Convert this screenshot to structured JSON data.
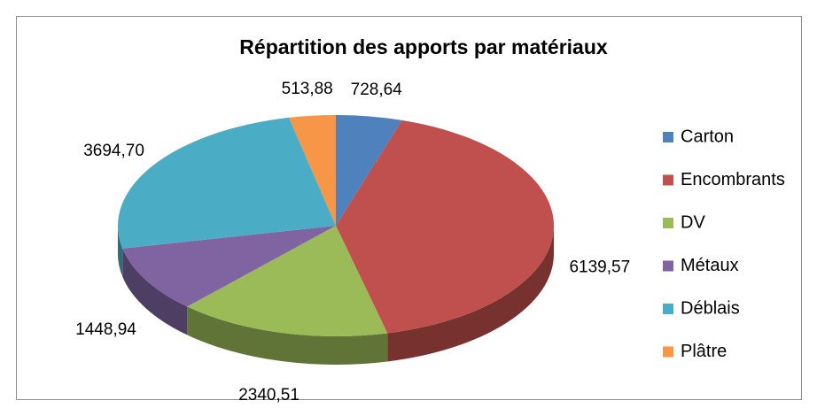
{
  "chart_data": {
    "type": "pie3d",
    "title": "Répartition des apports par matériaux",
    "categories": [
      "Carton",
      "Encombrants",
      "DV",
      "Métaux",
      "Déblais",
      "Plâtre"
    ],
    "values": [
      728.64,
      6139.57,
      2340.51,
      1448.94,
      3694.7,
      513.88
    ],
    "value_labels": [
      "728,64",
      "6139,57",
      "2340,51",
      "1448,94",
      "3694,70",
      "513,88"
    ],
    "colors": [
      "#4f81bd",
      "#c0504d",
      "#9bbb59",
      "#8064a2",
      "#4bacc6",
      "#f79646"
    ],
    "legend": "right"
  }
}
